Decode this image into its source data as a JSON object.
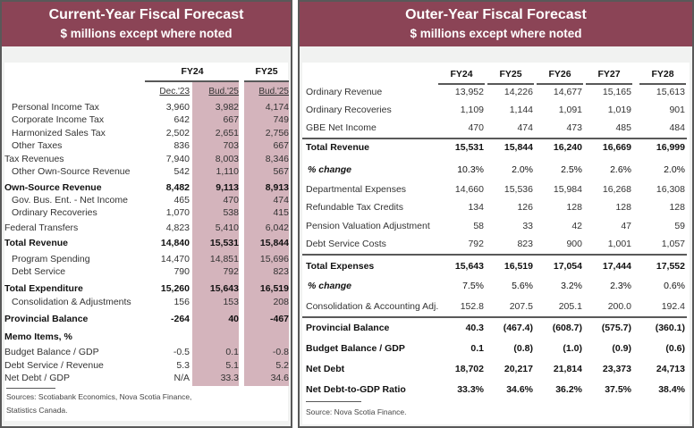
{
  "left": {
    "title": "Current-Year Fiscal Forecast",
    "subtitle": "$ millions except where noted",
    "group_headers": [
      "FY24",
      "FY25"
    ],
    "columns": [
      "Dec.'23",
      "Bud.'25",
      "Bud.'25"
    ],
    "rows": [
      {
        "label": "Personal Income Tax",
        "values": [
          "3,960",
          "3,982",
          "4,174"
        ],
        "style": "indent"
      },
      {
        "label": "Corporate Income Tax",
        "values": [
          "642",
          "667",
          "749"
        ],
        "style": "indent"
      },
      {
        "label": "Harmonized Sales Tax",
        "values": [
          "2,502",
          "2,651",
          "2,756"
        ],
        "style": "indent"
      },
      {
        "label": "Other Taxes",
        "values": [
          "836",
          "703",
          "667"
        ],
        "style": "indent"
      },
      {
        "label": "Tax Revenues",
        "values": [
          "7,940",
          "8,003",
          "8,346"
        ],
        "style": ""
      },
      {
        "label": "Other Own-Source Revenue",
        "values": [
          "542",
          "1,110",
          "567"
        ],
        "style": "indent"
      },
      {
        "label": "Own-Source Revenue",
        "values": [
          "8,482",
          "9,113",
          "8,913"
        ],
        "style": "bold"
      },
      {
        "label": "Gov. Bus. Ent. - Net Income",
        "values": [
          "465",
          "470",
          "474"
        ],
        "style": "indent"
      },
      {
        "label": "Ordinary Recoveries",
        "values": [
          "1,070",
          "538",
          "415"
        ],
        "style": "indent"
      },
      {
        "label": "Federal Transfers",
        "values": [
          "4,823",
          "5,410",
          "6,042"
        ],
        "style": ""
      },
      {
        "label": "Total Revenue",
        "values": [
          "14,840",
          "15,531",
          "15,844"
        ],
        "style": "bold"
      },
      {
        "label": "Program Spending",
        "values": [
          "14,470",
          "14,851",
          "15,696"
        ],
        "style": "indent"
      },
      {
        "label": "Debt Service",
        "values": [
          "790",
          "792",
          "823"
        ],
        "style": "indent"
      },
      {
        "label": "Total Expenditure",
        "values": [
          "15,260",
          "15,643",
          "16,519"
        ],
        "style": "bold"
      },
      {
        "label": "Consolidation & Adjustments",
        "values": [
          "156",
          "153",
          "208"
        ],
        "style": "indent"
      },
      {
        "label": "Provincial Balance",
        "values": [
          "-264",
          "40",
          "-467"
        ],
        "style": "bold"
      },
      {
        "label": "Memo Items, %",
        "values": [
          "",
          "",
          ""
        ],
        "style": "bold"
      },
      {
        "label": "Budget Balance / GDP",
        "values": [
          "-0.5",
          "0.1",
          "-0.8"
        ],
        "style": ""
      },
      {
        "label": "Debt Service / Revenue",
        "values": [
          "5.3",
          "5.1",
          "5.2"
        ],
        "style": ""
      },
      {
        "label": "Net Debt / GDP",
        "values": [
          "N/A",
          "33.3",
          "34.6"
        ],
        "style": ""
      }
    ],
    "sources": [
      "Sources: Scotiabank Economics,  Nova Scotia Finance,",
      "Statistics Canada."
    ]
  },
  "right": {
    "title": "Outer-Year Fiscal Forecast",
    "subtitle": "$ millions except where noted",
    "columns": [
      "FY24",
      "FY25",
      "FY26",
      "FY27",
      "FY28"
    ],
    "rows": [
      {
        "label": "Ordinary Revenue",
        "values": [
          "13,952",
          "14,226",
          "14,677",
          "15,165",
          "15,613"
        ],
        "style": ""
      },
      {
        "label": "Ordinary Recoveries",
        "values": [
          "1,109",
          "1,144",
          "1,091",
          "1,019",
          "901"
        ],
        "style": ""
      },
      {
        "label": "GBE Net Income",
        "values": [
          "470",
          "474",
          "473",
          "485",
          "484"
        ],
        "style": ""
      },
      {
        "label": "Total Revenue",
        "values": [
          "15,531",
          "15,844",
          "16,240",
          "16,669",
          "16,999"
        ],
        "style": "bold"
      },
      {
        "label": "% change",
        "values": [
          "10.3%",
          "2.0%",
          "2.5%",
          "2.6%",
          "2.0%"
        ],
        "style": "pct"
      },
      {
        "label": "Departmental Expenses",
        "values": [
          "14,660",
          "15,536",
          "15,984",
          "16,268",
          "16,308"
        ],
        "style": ""
      },
      {
        "label": "Refundable Tax Credits",
        "values": [
          "134",
          "126",
          "128",
          "128",
          "128"
        ],
        "style": ""
      },
      {
        "label": "Pension Valuation Adjustment",
        "values": [
          "58",
          "33",
          "42",
          "47",
          "59"
        ],
        "style": ""
      },
      {
        "label": "Debt Service Costs",
        "values": [
          "792",
          "823",
          "900",
          "1,001",
          "1,057"
        ],
        "style": ""
      },
      {
        "label": "Total Expenses",
        "values": [
          "15,643",
          "16,519",
          "17,054",
          "17,444",
          "17,552"
        ],
        "style": "bold"
      },
      {
        "label": "% change",
        "values": [
          "7.5%",
          "5.6%",
          "3.2%",
          "2.3%",
          "0.6%"
        ],
        "style": "pct"
      },
      {
        "label": "Consolidation & Accounting Adj.",
        "values": [
          "152.8",
          "207.5",
          "205.1",
          "200.0",
          "192.4"
        ],
        "style": ""
      },
      {
        "label": "Provincial Balance",
        "values": [
          "40.3",
          "(467.4)",
          "(608.7)",
          "(575.7)",
          "(360.1)"
        ],
        "style": "bold"
      },
      {
        "label": "Budget Balance / GDP",
        "values": [
          "0.1",
          "(0.8)",
          "(1.0)",
          "(0.9)",
          "(0.6)"
        ],
        "style": "bold"
      },
      {
        "label": "Net Debt",
        "values": [
          "18,702",
          "20,217",
          "21,814",
          "23,373",
          "24,713"
        ],
        "style": "bold"
      },
      {
        "label": "Net Debt-to-GDP Ratio",
        "values": [
          "33.3%",
          "34.6%",
          "36.2%",
          "37.5%",
          "38.4%"
        ],
        "style": "bold"
      }
    ],
    "source": "Source: Nova Scotia Finance."
  }
}
